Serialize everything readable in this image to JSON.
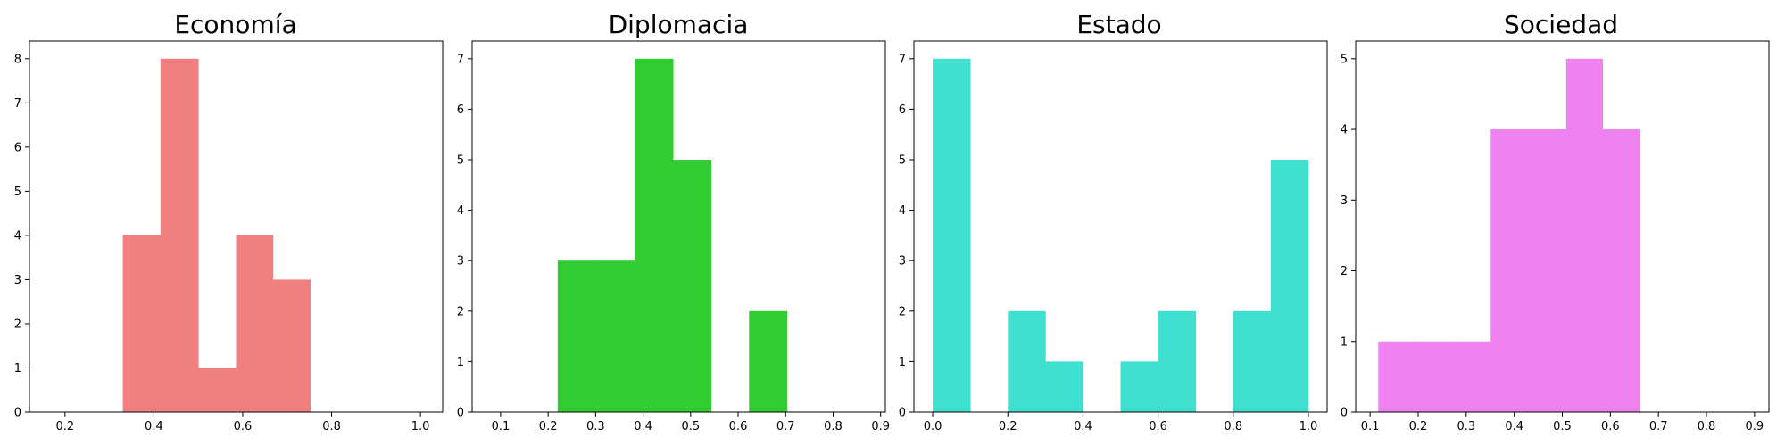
{
  "chart_data": [
    {
      "type": "bar",
      "title": "Economía",
      "color": "#f08080",
      "bins": [
        {
          "x0": 0.33,
          "x1": 0.415,
          "value": 4
        },
        {
          "x0": 0.415,
          "x1": 0.5,
          "value": 8
        },
        {
          "x0": 0.5,
          "x1": 0.585,
          "value": 1
        },
        {
          "x0": 0.585,
          "x1": 0.668,
          "value": 4
        },
        {
          "x0": 0.668,
          "x1": 0.752,
          "value": 3
        }
      ],
      "xlim": [
        0.12,
        1.05
      ],
      "ylim": [
        0,
        8.4
      ],
      "xticks": [
        0.2,
        0.4,
        0.6,
        0.8,
        1.0
      ],
      "xtick_labels": [
        "0.2",
        "0.4",
        "0.6",
        "0.8",
        "1.0"
      ],
      "yticks": [
        0,
        1,
        2,
        3,
        4,
        5,
        6,
        7,
        8
      ],
      "ytick_labels": [
        "0",
        "1",
        "2",
        "3",
        "4",
        "5",
        "6",
        "7",
        "8"
      ]
    },
    {
      "type": "bar",
      "title": "Diplomacia",
      "color": "#32cd32",
      "bins": [
        {
          "x0": 0.22,
          "x1": 0.302,
          "value": 3
        },
        {
          "x0": 0.302,
          "x1": 0.383,
          "value": 3
        },
        {
          "x0": 0.383,
          "x1": 0.463,
          "value": 7
        },
        {
          "x0": 0.463,
          "x1": 0.543,
          "value": 5
        },
        {
          "x0": 0.543,
          "x1": 0.623,
          "value": 0
        },
        {
          "x0": 0.623,
          "x1": 0.703,
          "value": 2
        }
      ],
      "xlim": [
        0.04,
        0.91
      ],
      "ylim": [
        0,
        7.35
      ],
      "xticks": [
        0.1,
        0.2,
        0.3,
        0.4,
        0.5,
        0.6,
        0.7,
        0.8,
        0.9
      ],
      "xtick_labels": [
        "0.1",
        "0.2",
        "0.3",
        "0.4",
        "0.5",
        "0.6",
        "0.7",
        "0.8",
        "0.9"
      ],
      "yticks": [
        0,
        1,
        2,
        3,
        4,
        5,
        6,
        7
      ],
      "ytick_labels": [
        "0",
        "1",
        "2",
        "3",
        "4",
        "5",
        "6",
        "7"
      ]
    },
    {
      "type": "bar",
      "title": "Estado",
      "color": "#40e0d0",
      "bins": [
        {
          "x0": 0.0,
          "x1": 0.1,
          "value": 7
        },
        {
          "x0": 0.1,
          "x1": 0.2,
          "value": 0
        },
        {
          "x0": 0.2,
          "x1": 0.3,
          "value": 2
        },
        {
          "x0": 0.3,
          "x1": 0.4,
          "value": 1
        },
        {
          "x0": 0.4,
          "x1": 0.5,
          "value": 0
        },
        {
          "x0": 0.5,
          "x1": 0.6,
          "value": 1
        },
        {
          "x0": 0.6,
          "x1": 0.7,
          "value": 2
        },
        {
          "x0": 0.7,
          "x1": 0.8,
          "value": 0
        },
        {
          "x0": 0.8,
          "x1": 0.9,
          "value": 2
        },
        {
          "x0": 0.9,
          "x1": 1.0,
          "value": 5
        }
      ],
      "xlim": [
        -0.05,
        1.05
      ],
      "ylim": [
        0,
        7.35
      ],
      "xticks": [
        0.0,
        0.2,
        0.4,
        0.6,
        0.8,
        1.0
      ],
      "xtick_labels": [
        "0.0",
        "0.2",
        "0.4",
        "0.6",
        "0.8",
        "1.0"
      ],
      "yticks": [
        0,
        1,
        2,
        3,
        4,
        5,
        6,
        7
      ],
      "ytick_labels": [
        "0",
        "1",
        "2",
        "3",
        "4",
        "5",
        "6",
        "7"
      ]
    },
    {
      "type": "bar",
      "title": "Sociedad",
      "color": "#ee82ee",
      "bins": [
        {
          "x0": 0.117,
          "x1": 0.195,
          "value": 1
        },
        {
          "x0": 0.195,
          "x1": 0.273,
          "value": 1
        },
        {
          "x0": 0.273,
          "x1": 0.351,
          "value": 1
        },
        {
          "x0": 0.351,
          "x1": 0.43,
          "value": 4
        },
        {
          "x0": 0.43,
          "x1": 0.508,
          "value": 4
        },
        {
          "x0": 0.508,
          "x1": 0.584,
          "value": 5
        },
        {
          "x0": 0.584,
          "x1": 0.66,
          "value": 4
        }
      ],
      "xlim": [
        0.07,
        0.93
      ],
      "ylim": [
        0,
        5.25
      ],
      "xticks": [
        0.1,
        0.2,
        0.3,
        0.4,
        0.5,
        0.6,
        0.7,
        0.8,
        0.9
      ],
      "xtick_labels": [
        "0.1",
        "0.2",
        "0.3",
        "0.4",
        "0.5",
        "0.6",
        "0.7",
        "0.8",
        "0.9"
      ],
      "yticks": [
        0,
        1,
        2,
        3,
        4,
        5
      ],
      "ytick_labels": [
        "0",
        "1",
        "2",
        "3",
        "4",
        "5"
      ]
    }
  ]
}
